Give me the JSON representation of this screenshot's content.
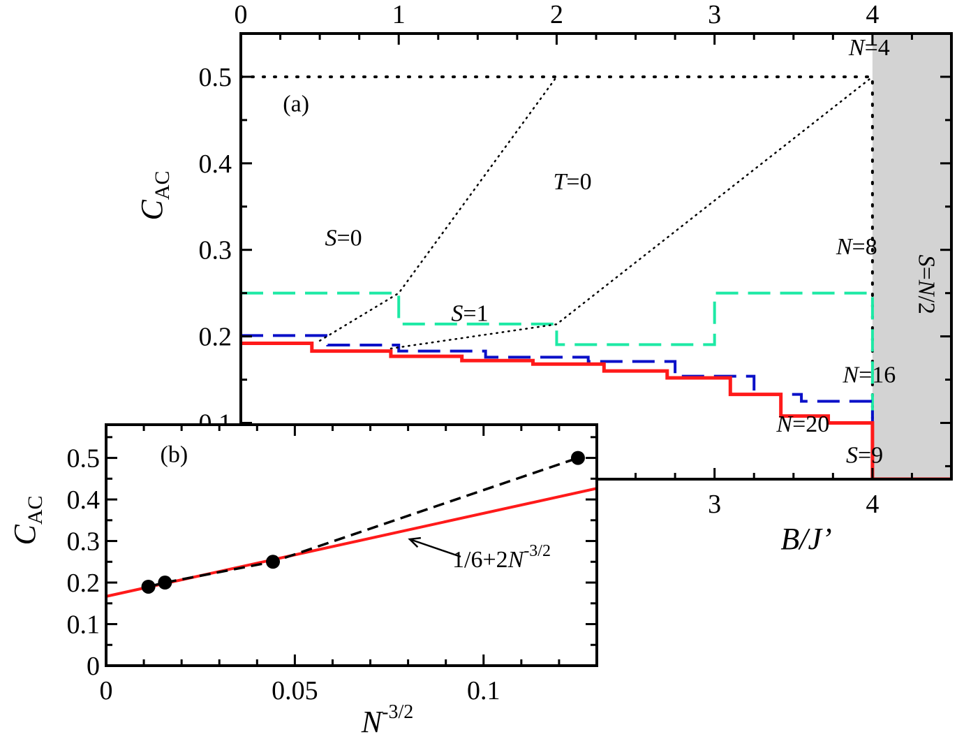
{
  "chart_data": [
    {
      "panel": "(a)",
      "type": "line",
      "xlabel": {
        "main": "B/J’"
      },
      "ylabel": {
        "main": "C",
        "sub": "AC"
      },
      "xlim": [
        0,
        4.5
      ],
      "ylim": [
        0.035,
        0.55
      ],
      "xticks_top": [
        "0",
        "1",
        "2",
        "3",
        "4"
      ],
      "xticks_bottom": [
        "3",
        "4"
      ],
      "yticks": [
        "0.1",
        "0.2",
        "0.3",
        "0.4",
        "0.5"
      ],
      "shaded_region": {
        "x": [
          4.0,
          4.5
        ],
        "label": "S=N/2",
        "color": "#d3d3d3"
      },
      "series": [
        {
          "name": "N=4",
          "style": "dotted",
          "color": "#000000",
          "width": 4,
          "points": [
            [
              0,
              0.5
            ],
            [
              4,
              0.5
            ],
            [
              4,
              0.035
            ]
          ]
        },
        {
          "name": "N=8",
          "style": "dashed",
          "color": "#1de9a5",
          "width": 4,
          "points": [
            [
              0,
              0.25
            ],
            [
              1,
              0.25
            ],
            [
              1,
              0.2143
            ],
            [
              2,
              0.2143
            ],
            [
              2,
              0.1905
            ],
            [
              3,
              0.1905
            ],
            [
              3,
              0.25
            ],
            [
              4,
              0.25
            ],
            [
              4,
              0.1
            ]
          ]
        },
        {
          "name": "N=16",
          "style": "dashed",
          "color": "#0a10c8",
          "width": 4,
          "points": [
            [
              0,
              0.201
            ],
            [
              0.55,
              0.201
            ],
            [
              0.55,
              0.19
            ],
            [
              1.0,
              0.19
            ],
            [
              1.0,
              0.183
            ],
            [
              1.55,
              0.183
            ],
            [
              1.55,
              0.176
            ],
            [
              2.2,
              0.176
            ],
            [
              2.2,
              0.171
            ],
            [
              2.75,
              0.171
            ],
            [
              2.75,
              0.154
            ],
            [
              3.25,
              0.154
            ],
            [
              3.25,
              0.133
            ],
            [
              3.55,
              0.133
            ],
            [
              3.55,
              0.125
            ],
            [
              4,
              0.125
            ],
            [
              4,
              0.1
            ]
          ]
        },
        {
          "name": "N=20",
          "style": "solid",
          "color": "#ff1a1a",
          "width": 5,
          "points": [
            [
              0,
              0.192
            ],
            [
              0.45,
              0.192
            ],
            [
              0.45,
              0.183
            ],
            [
              0.95,
              0.183
            ],
            [
              0.95,
              0.177
            ],
            [
              1.4,
              0.177
            ],
            [
              1.4,
              0.172
            ],
            [
              1.85,
              0.172
            ],
            [
              1.85,
              0.168
            ],
            [
              2.3,
              0.168
            ],
            [
              2.3,
              0.16
            ],
            [
              2.7,
              0.16
            ],
            [
              2.7,
              0.152
            ],
            [
              3.1,
              0.152
            ],
            [
              3.1,
              0.133
            ],
            [
              3.42,
              0.133
            ],
            [
              3.42,
              0.108
            ],
            [
              3.72,
              0.108
            ],
            [
              3.72,
              0.1
            ],
            [
              4,
              0.1
            ],
            [
              4,
              0.035
            ],
            [
              4.5,
              0.035
            ]
          ]
        },
        {
          "name": "",
          "style": "finedot",
          "color": "#000000",
          "width": 2.5,
          "points": [
            [
              0.5,
              0.195
            ],
            [
              1,
              0.25
            ],
            [
              2,
              0.5
            ]
          ]
        },
        {
          "name": "",
          "style": "finedot",
          "color": "#000000",
          "width": 2.5,
          "points": [
            [
              0.95,
              0.186
            ],
            [
              2,
              0.214
            ],
            [
              4,
              0.5
            ]
          ]
        }
      ],
      "annotations": [
        {
          "text": "(a)",
          "x": 0.35,
          "y": 0.46
        },
        {
          "text": "T=0",
          "x": 2.1,
          "y": 0.37,
          "italic_prefix": "T"
        },
        {
          "text": "N=4",
          "x": 3.98,
          "y": 0.525,
          "italic_prefix": "N"
        },
        {
          "text": "S=0",
          "x": 0.65,
          "y": 0.305,
          "italic_prefix": "S"
        },
        {
          "text": "S=1",
          "x": 1.45,
          "y": 0.218,
          "italic_prefix": "S"
        },
        {
          "text": "N=8",
          "x": 3.9,
          "y": 0.295,
          "italic_prefix": "N"
        },
        {
          "text": "N=16",
          "x": 3.98,
          "y": 0.147,
          "italic_prefix": "N"
        },
        {
          "text": "N=20",
          "x": 3.56,
          "y": 0.09,
          "italic_prefix": "N"
        },
        {
          "text": "S=9",
          "x": 3.95,
          "y": 0.054,
          "italic_prefix": "S"
        }
      ]
    },
    {
      "panel": "(b)",
      "type": "scatter",
      "xlabel": {
        "main": "N",
        "sup": "-3/2"
      },
      "ylabel": {
        "main": "C",
        "sub": "AC"
      },
      "xlim": [
        0,
        0.13
      ],
      "ylim": [
        0,
        0.58
      ],
      "xticks": [
        "0",
        "0.05",
        "0.1"
      ],
      "yticks": [
        "0",
        "0.1",
        "0.2",
        "0.3",
        "0.4",
        "0.5"
      ],
      "points": [
        [
          0.0112,
          0.19
        ],
        [
          0.0156,
          0.2
        ],
        [
          0.0442,
          0.25
        ],
        [
          0.125,
          0.5
        ]
      ],
      "dashed_line": {
        "color": "#000000",
        "points": [
          [
            0.0112,
            0.19
          ],
          [
            0.0156,
            0.2
          ],
          [
            0.0442,
            0.25
          ],
          [
            0.125,
            0.5
          ]
        ]
      },
      "fit_line": {
        "color": "#ff1a1a",
        "label": "1/6+2N",
        "label_sup": "-3/2",
        "intercept": 0.16667,
        "slope": 2
      },
      "annotations": [
        {
          "text": "(b)",
          "x": 0.018,
          "y": 0.49
        }
      ]
    }
  ]
}
